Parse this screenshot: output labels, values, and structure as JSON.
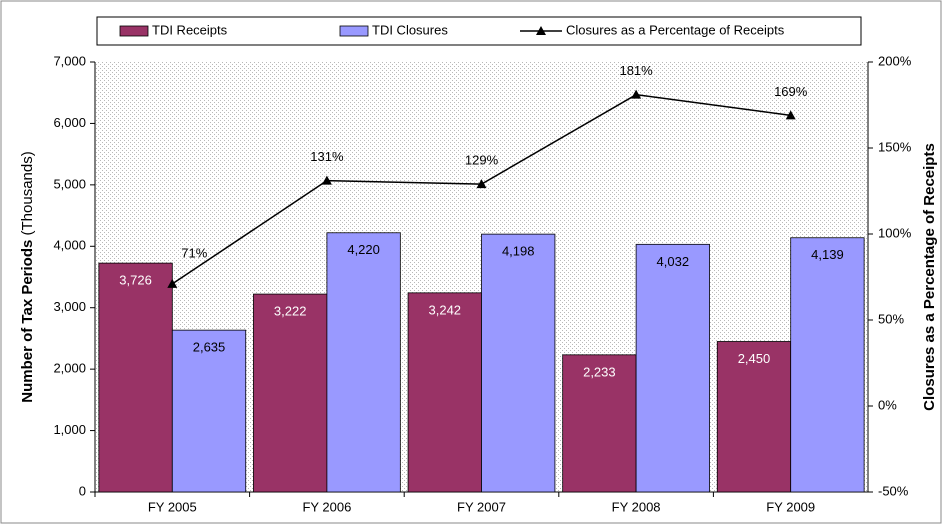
{
  "chart_data": {
    "type": "bar_line",
    "y_label": "Number of Tax Periods",
    "y_label_unit": "(Thousands)",
    "y2_label": "Closures as a Percentage of Receipts",
    "categories": [
      "FY 2005",
      "FY 2006",
      "FY 2007",
      "FY 2008",
      "FY 2009"
    ],
    "series": [
      {
        "name": "TDI Receipts",
        "color": "#993366",
        "values": [
          3726,
          3222,
          3242,
          2233,
          2450
        ],
        "value_labels": [
          "3,726",
          "3,222",
          "3,242",
          "2,233",
          "2,450"
        ]
      },
      {
        "name": "TDI Closures",
        "color": "#9999ff",
        "values": [
          2635,
          4220,
          4198,
          4032,
          4139
        ],
        "value_labels": [
          "2,635",
          "4,220",
          "4,198",
          "4,032",
          "4,139"
        ]
      },
      {
        "name": "Closures as a Percentage of Receipts",
        "color": "#000000",
        "axis": "y2",
        "values": [
          71,
          131,
          129,
          181,
          169
        ],
        "value_labels": [
          "71%",
          "131%",
          "129%",
          "181%",
          "169%"
        ]
      }
    ],
    "ylim": [
      0,
      7000
    ],
    "yticks": [
      0,
      {
        "value": 1000,
        "label": "1,000"
      },
      {
        "value": 2000,
        "label": "2,000"
      },
      {
        "value": 3000,
        "label": "3,000"
      },
      {
        "value": 4000,
        "label": "4,000"
      },
      {
        "value": 5000,
        "label": "5,000"
      },
      {
        "value": 6000,
        "label": "6,000"
      },
      {
        "value": 7000,
        "label": "7,000"
      }
    ],
    "y2lim": [
      -50,
      200
    ],
    "y2ticks": [
      {
        "value": -50,
        "label": "-50%"
      },
      {
        "value": 0,
        "label": "0%"
      },
      {
        "value": 50,
        "label": "50%"
      },
      {
        "value": 100,
        "label": "100%"
      },
      {
        "value": 150,
        "label": "150%"
      },
      {
        "value": 200,
        "label": "200%"
      }
    ]
  }
}
